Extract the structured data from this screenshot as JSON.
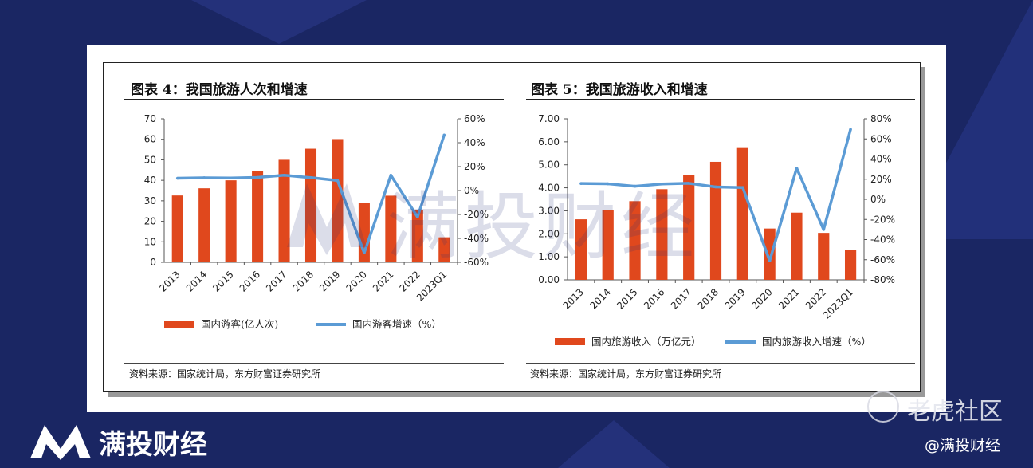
{
  "charts": [
    {
      "panel_title": "图表 4：我国旅游人次和增速",
      "source": "资料来源：国家统计局，东方财富证券研究所",
      "legend": [
        "国内游客(亿人次)",
        "国内游客增速（%）"
      ],
      "colors": {
        "bar": "#e0481d",
        "line": "#5b9bd5"
      },
      "chart_data": {
        "type": "bar",
        "categories": [
          "2013",
          "2014",
          "2015",
          "2016",
          "2017",
          "2018",
          "2019",
          "2020",
          "2021",
          "2022",
          "2023Q1"
        ],
        "series": [
          {
            "name": "国内游客(亿人次)",
            "axis": "left",
            "values": [
              32.6,
              36.1,
              40.0,
              44.4,
              50.0,
              55.4,
              60.1,
              28.8,
              32.5,
              25.3,
              12.2
            ]
          },
          {
            "name": "国内游客增速（%）",
            "axis": "right",
            "type": "line",
            "values": [
              10.3,
              10.7,
              10.5,
              11.0,
              12.8,
              10.8,
              8.4,
              -52.1,
              12.8,
              -22.1,
              46.5
            ]
          }
        ],
        "ylim_left": [
          0,
          70
        ],
        "yticks_left": [
          "0",
          "10",
          "20",
          "30",
          "40",
          "50",
          "60",
          "70"
        ],
        "ylim_right": [
          -60,
          60
        ],
        "yticks_right": [
          "-60%",
          "-40%",
          "-20%",
          "0%",
          "20%",
          "40%",
          "60%"
        ],
        "grid": false,
        "legend_position": "bottom"
      }
    },
    {
      "panel_title": "图表 5：我国旅游收入和增速",
      "source": "资料来源：国家统计局，东方财富证券研究所",
      "legend": [
        "国内旅游收入（万亿元）",
        "国内旅游收入增速（%）"
      ],
      "colors": {
        "bar": "#e0481d",
        "line": "#5b9bd5"
      },
      "chart_data": {
        "type": "bar",
        "categories": [
          "2013",
          "2014",
          "2015",
          "2016",
          "2017",
          "2018",
          "2019",
          "2020",
          "2021",
          "2022",
          "2023Q1"
        ],
        "series": [
          {
            "name": "国内旅游收入（万亿元）",
            "axis": "left",
            "values": [
              2.63,
              3.03,
              3.42,
              3.94,
              4.57,
              5.13,
              5.73,
              2.23,
              2.92,
              2.04,
              1.3
            ]
          },
          {
            "name": "国内旅游收入增速（%）",
            "axis": "right",
            "type": "line",
            "values": [
              15.7,
              15.4,
              13.0,
              15.2,
              15.9,
              12.3,
              11.7,
              -61.1,
              31.0,
              -30.0,
              69.5
            ]
          }
        ],
        "ylim_left": [
          0,
          7
        ],
        "yticks_left": [
          "0.00",
          "1.00",
          "2.00",
          "3.00",
          "4.00",
          "5.00",
          "6.00",
          "7.00"
        ],
        "ylim_right": [
          -80,
          80
        ],
        "yticks_right": [
          "-80%",
          "-60%",
          "-40%",
          "-20%",
          "0%",
          "20%",
          "40%",
          "60%",
          "80%"
        ],
        "grid": false,
        "legend_position": "bottom"
      }
    }
  ],
  "watermark": "满投财经",
  "footer": {
    "brand": "满投财经",
    "community": "老虎社区",
    "handle": "@满投财经"
  }
}
